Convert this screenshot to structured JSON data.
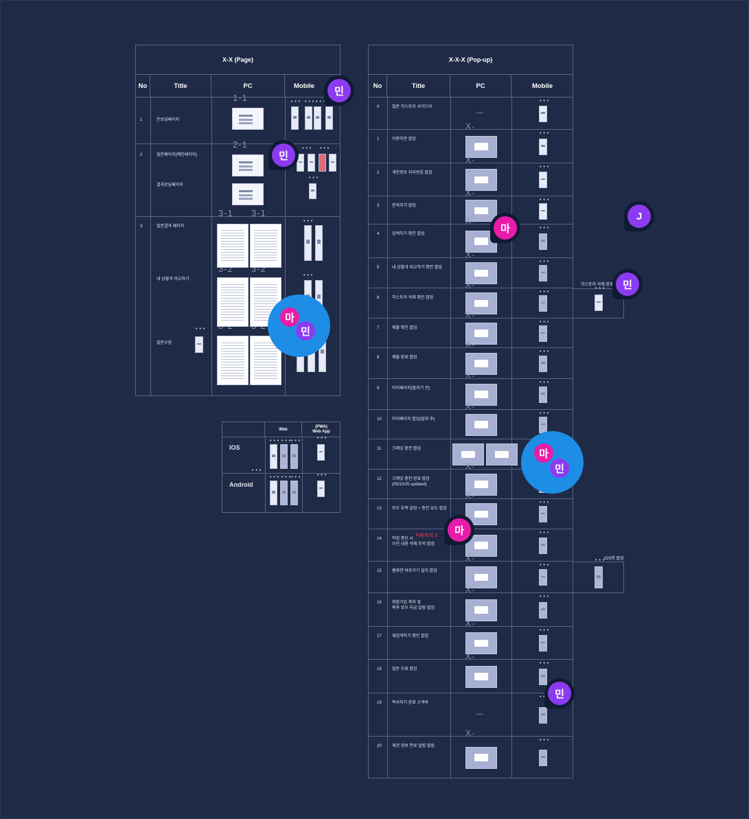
{
  "page_table": {
    "title": "X-X (Page)",
    "headers": {
      "no": "No",
      "title": "Title",
      "pc": "PC",
      "mobile": "Mobile"
    },
    "rows": [
      {
        "no": "1",
        "title": "온보딩페이지"
      },
      {
        "no": "2",
        "title": "질문페이지(메인페이지)",
        "title2": "결과로딩페이지"
      },
      {
        "no": "3",
        "title": "질문결과 페이지",
        "title2": "내 상황과 비교하기",
        "title3": "질문수집"
      }
    ],
    "labels": {
      "l1": "1-1",
      "l2": "2-1",
      "l3a": "3-1",
      "l3b": "3-1",
      "l4a": "3-2",
      "l4b": "3-2",
      "l5a": "3-2",
      "l5b": "3-2"
    },
    "dots": "• • •"
  },
  "platform_table": {
    "headers": {
      "web": "Web",
      "pwa": "(PWA)\nWeb App"
    },
    "rows": [
      {
        "name": "IOS"
      },
      {
        "name": "Android"
      }
    ]
  },
  "popup_table": {
    "title": "X-X-X (Pop-up)",
    "headers": {
      "no": "No",
      "title": "Title",
      "pc": "PC",
      "mobile": "Mobile"
    },
    "rows": [
      {
        "no": "0",
        "title": "질문 히스토리 사이드바"
      },
      {
        "no": "1",
        "title": "이용약관 팝업"
      },
      {
        "no": "2",
        "title": "개인정보 처리방침 팝업"
      },
      {
        "no": "3",
        "title": "문의하기 팝업"
      },
      {
        "no": "4",
        "title": "검색하기 확인 팝업"
      },
      {
        "no": "5",
        "title": "내 상황과 비교하기 확인 팝업"
      },
      {
        "no": "6",
        "title": "히스토리 삭제 확인 팝업"
      },
      {
        "no": "7",
        "title": "제출 확인 팝업"
      },
      {
        "no": "8",
        "title": "제출 완료 팝업"
      },
      {
        "no": "9",
        "title": "마이페이지(탈지기 전)"
      },
      {
        "no": "10",
        "title": "마이페이지 팝업(탈퇴 후)"
      },
      {
        "no": "11",
        "title": "크레딧 충전 팝업"
      },
      {
        "no": "12",
        "title": "크레딧 충전 완료 팝업",
        "title2": "(05/10/25 updated)"
      },
      {
        "no": "13",
        "title": "로우 부족 알림 + 충전 유도 팝업"
      },
      {
        "no": "14",
        "title": "작업 중단 시",
        "title2": "쓰던 내용 삭제 주의 팝업"
      },
      {
        "no": "15",
        "title": "홈화면 바로가기 설치 팝업"
      },
      {
        "no": "16",
        "title": "회원가입 축하 및",
        "title2": "축하 로우 지급 알림 팝업"
      },
      {
        "no": "17",
        "title": "재검색하기 확인 팝업"
      },
      {
        "no": "18",
        "title": "질문 오류 팝업"
      },
      {
        "no": "19",
        "title": "복사하기 완료 스낵바"
      },
      {
        "no": "20",
        "title": "세션 정보 만료 알림 팝업"
      }
    ],
    "x_label": "X-",
    "dash": "—"
  },
  "side_notes": {
    "history_delete": "히스토리 삭제 완료",
    "ios_popup": "IOS용 팝업",
    "red_note": "적용하지 X"
  },
  "avatars": {
    "min": "민",
    "ma": "마",
    "j": "J"
  },
  "colors": {
    "background": "#1f2a47",
    "grid": "#59648a",
    "purple": "#8b3bf0",
    "pink": "#e81ca8",
    "blue": "#1e8de6"
  }
}
